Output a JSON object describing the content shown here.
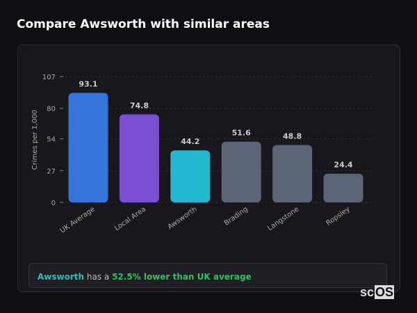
{
  "title": "Compare Awsworth with similar areas",
  "chart_data": {
    "type": "bar",
    "title": "",
    "xlabel": "",
    "ylabel": "Crimes per 1,000",
    "ylim": [
      0,
      107
    ],
    "yticks": [
      0,
      27,
      54,
      80,
      107
    ],
    "grid": "horizontal-dashed",
    "categories": [
      "UK Average",
      "Local Area",
      "Awsworth",
      "Brading",
      "Langstone",
      "Ropsley"
    ],
    "values": [
      93.1,
      74.8,
      44.2,
      51.6,
      48.8,
      24.4
    ],
    "colors": [
      "#3575d9",
      "#7b4fd4",
      "#22b8cf",
      "#5c6575",
      "#5c6575",
      "#5c6575"
    ]
  },
  "insight": {
    "area": "Awsworth",
    "middle": " has a ",
    "highlight": "52.5% lower than UK average"
  },
  "logo": {
    "a": "sc",
    "b": "OS"
  }
}
